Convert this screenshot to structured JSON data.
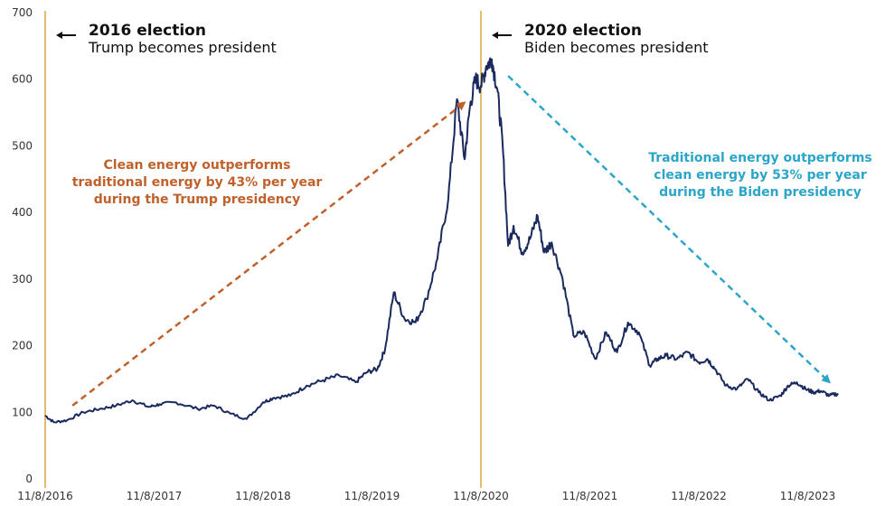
{
  "chart_data": {
    "type": "line",
    "title": "",
    "xlabel": "",
    "ylabel": "",
    "ylim": [
      0,
      700
    ],
    "yticks": [
      "0",
      "100",
      "200",
      "300",
      "400",
      "500",
      "600",
      "700"
    ],
    "xticks": [
      "11/8/2016",
      "11/8/2017",
      "11/8/2018",
      "11/8/2019",
      "11/8/2020",
      "11/8/2021",
      "11/8/2022",
      "11/8/2023"
    ],
    "grid": false,
    "line_color": "#1b2a5e",
    "series": [
      {
        "name": "",
        "x": [
          0,
          0.08,
          0.2,
          0.35,
          0.5,
          0.65,
          0.8,
          0.95,
          1.05,
          1.2,
          1.4,
          1.55,
          1.7,
          1.85,
          2.0,
          2.1,
          2.25,
          2.4,
          2.55,
          2.7,
          2.85,
          2.95,
          3.05,
          3.12,
          3.2,
          3.3,
          3.4,
          3.5,
          3.6,
          3.7,
          3.78,
          3.85,
          3.9,
          3.95,
          4.0,
          4.05,
          4.1,
          4.15,
          4.2,
          4.25,
          4.3,
          4.38,
          4.45,
          4.52,
          4.58,
          4.65,
          4.75,
          4.85,
          4.95,
          5.05,
          5.15,
          5.25,
          5.35,
          5.45,
          5.55,
          5.62,
          5.7,
          5.8,
          5.9,
          6.0,
          6.08,
          6.15,
          6.25,
          6.35,
          6.45,
          6.55,
          6.65,
          6.75,
          6.82,
          6.9,
          6.98,
          7.05,
          7.12,
          7.2,
          7.28
        ],
        "values": [
          95,
          85,
          88,
          100,
          105,
          110,
          118,
          108,
          112,
          115,
          105,
          110,
          98,
          90,
          115,
          122,
          125,
          140,
          148,
          155,
          145,
          160,
          165,
          195,
          280,
          240,
          235,
          270,
          330,
          420,
          570,
          480,
          560,
          600,
          590,
          620,
          630,
          585,
          500,
          350,
          380,
          340,
          360,
          395,
          340,
          355,
          300,
          215,
          220,
          180,
          220,
          190,
          235,
          220,
          170,
          180,
          185,
          180,
          190,
          175,
          180,
          165,
          140,
          135,
          150,
          130,
          118,
          125,
          140,
          145,
          135,
          130,
          132,
          125,
          128
        ]
      }
    ],
    "events": [
      {
        "x": 0.0,
        "title": "2016 election",
        "subtitle": "Trump becomes president",
        "line_color": "#e2bd6a"
      },
      {
        "x": 4.0,
        "title": "2020 election",
        "subtitle": "Biden becomes president",
        "line_color": "#e2bd6a"
      }
    ],
    "annotations": [
      {
        "lines": [
          "Clean energy outperforms",
          "traditional energy by 43% per year",
          "during the Trump presidency"
        ],
        "color": "#c0612b",
        "arrow_from": [
          0.25,
          110
        ],
        "arrow_to": [
          3.85,
          565
        ]
      },
      {
        "lines": [
          "Traditional energy outperforms",
          "clean energy by 53% per year",
          "during the Biden presidency"
        ],
        "color": "#2ba5c9",
        "arrow_from": [
          4.25,
          605
        ],
        "arrow_to": [
          7.2,
          145
        ]
      }
    ]
  }
}
